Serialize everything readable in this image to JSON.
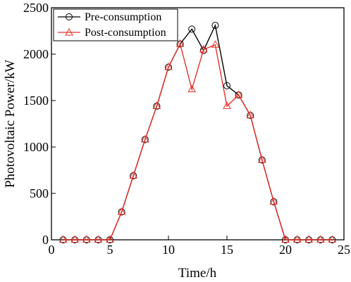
{
  "chart_data": {
    "type": "line",
    "xlabel": "Time/h",
    "ylabel": "Photovoltaic Power/kW",
    "xlim": [
      0,
      25
    ],
    "ylim": [
      0,
      2500
    ],
    "xticks": [
      0,
      5,
      10,
      15,
      20,
      25
    ],
    "yticks": [
      0,
      500,
      1000,
      1500,
      2000,
      2500
    ],
    "grid": false,
    "legend_position": "top-left",
    "series": [
      {
        "name": "Pre-consumption",
        "color": "#000000",
        "marker": "circle",
        "x": [
          1,
          2,
          3,
          4,
          5,
          6,
          7,
          8,
          9,
          10,
          11,
          12,
          13,
          14,
          15,
          16,
          17,
          18,
          19,
          20,
          21,
          22,
          23,
          24
        ],
        "y": [
          0,
          0,
          0,
          0,
          0,
          300,
          690,
          1080,
          1440,
          1860,
          2110,
          2270,
          2040,
          2310,
          1660,
          1560,
          1340,
          860,
          410,
          0,
          0,
          0,
          0,
          0
        ]
      },
      {
        "name": "Post-consumption",
        "color": "#e8312a",
        "marker": "triangle",
        "x": [
          1,
          2,
          3,
          4,
          5,
          6,
          7,
          8,
          9,
          10,
          11,
          12,
          13,
          14,
          15,
          16,
          17,
          18,
          19,
          20,
          21,
          22,
          23,
          24
        ],
        "y": [
          0,
          0,
          0,
          0,
          0,
          300,
          690,
          1080,
          1440,
          1860,
          2110,
          1620,
          2050,
          2100,
          1440,
          1560,
          1340,
          860,
          410,
          0,
          0,
          0,
          0,
          0
        ]
      }
    ]
  }
}
